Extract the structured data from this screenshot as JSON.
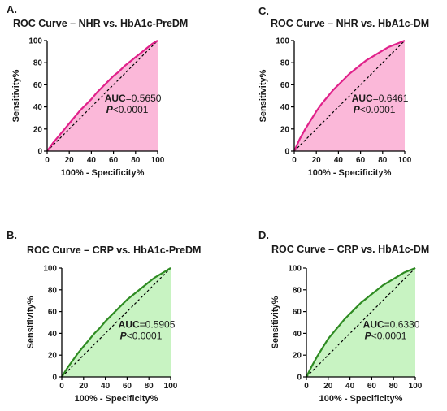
{
  "chart_data": [
    {
      "type": "line",
      "panel_label": "A.",
      "title": "ROC Curve – NHR vs. HbA1c-PreDM",
      "xlabel": "100% - Specificity%",
      "ylabel": "Sensitivity%",
      "xlim": [
        0,
        100
      ],
      "ylim": [
        0,
        100
      ],
      "ticks": [
        "0",
        "20",
        "40",
        "60",
        "80",
        "100"
      ],
      "grid": false,
      "line_color": "#e0218a",
      "fill_color": "#fbb8d9",
      "auc_label": "AUC",
      "auc_value": "=0.5650",
      "p_label": "P",
      "p_value": "<0.0001",
      "x": [
        0,
        5,
        10,
        15,
        20,
        25,
        30,
        35,
        40,
        45,
        50,
        55,
        60,
        65,
        70,
        75,
        80,
        85,
        90,
        95,
        100
      ],
      "y": [
        0,
        7,
        13,
        19,
        25,
        31,
        37,
        42,
        47,
        53,
        58,
        63,
        68,
        72,
        77,
        81,
        85,
        89,
        93,
        97,
        100
      ]
    },
    {
      "type": "line",
      "panel_label": "C.",
      "title": "ROC Curve – NHR vs. HbA1c-DM",
      "xlabel": "100% - Specificity%",
      "ylabel": "Sensitivity%",
      "xlim": [
        0,
        100
      ],
      "ylim": [
        0,
        100
      ],
      "ticks": [
        "0",
        "20",
        "40",
        "60",
        "80",
        "100"
      ],
      "grid": false,
      "line_color": "#e0218a",
      "fill_color": "#fbb8d9",
      "auc_label": "AUC",
      "auc_value": "=0.6461",
      "p_label": "P",
      "p_value": "<0.0001",
      "x": [
        0,
        5,
        10,
        15,
        20,
        25,
        30,
        35,
        40,
        45,
        50,
        55,
        60,
        65,
        70,
        75,
        80,
        85,
        90,
        95,
        100
      ],
      "y": [
        0,
        11,
        20,
        28,
        36,
        43,
        49,
        55,
        60,
        65,
        70,
        74,
        78,
        82,
        85,
        88,
        91,
        94,
        96,
        98,
        100
      ]
    },
    {
      "type": "line",
      "panel_label": "B.",
      "title": "ROC Curve – CRP vs. HbA1c-PreDM",
      "xlabel": "100% - Specificity%",
      "ylabel": "Sensitivity%",
      "xlim": [
        0,
        100
      ],
      "ylim": [
        0,
        100
      ],
      "ticks": [
        "0",
        "20",
        "40",
        "60",
        "80",
        "100"
      ],
      "grid": false,
      "line_color": "#2e8b22",
      "fill_color": "#c8f3c2",
      "auc_label": "AUC",
      "auc_value": "=0.5905",
      "p_label": "P",
      "p_value": "<0.0001",
      "x": [
        0,
        5,
        10,
        15,
        20,
        25,
        30,
        35,
        40,
        45,
        50,
        55,
        60,
        65,
        70,
        75,
        80,
        85,
        90,
        95,
        100
      ],
      "y": [
        0,
        8,
        15,
        22,
        28,
        34,
        40,
        45,
        51,
        56,
        61,
        66,
        71,
        75,
        79,
        83,
        87,
        91,
        94,
        97,
        100
      ]
    },
    {
      "type": "line",
      "panel_label": "D.",
      "title": "ROC Curve – CRP vs. HbA1c-DM",
      "xlabel": "100% - Specificity%",
      "ylabel": "Sensitivity%",
      "xlim": [
        0,
        100
      ],
      "ylim": [
        0,
        100
      ],
      "ticks": [
        "0",
        "20",
        "40",
        "60",
        "80",
        "100"
      ],
      "grid": false,
      "line_color": "#2e8b22",
      "fill_color": "#c8f3c2",
      "auc_label": "AUC",
      "auc_value": "=0.6330",
      "p_label": "P",
      "p_value": "<0.0001",
      "x": [
        0,
        5,
        10,
        15,
        20,
        25,
        30,
        35,
        40,
        45,
        50,
        55,
        60,
        65,
        70,
        75,
        80,
        85,
        90,
        95,
        100
      ],
      "y": [
        0,
        10,
        19,
        27,
        35,
        41,
        47,
        53,
        58,
        63,
        68,
        72,
        76,
        80,
        84,
        87,
        90,
        93,
        96,
        98,
        100
      ]
    }
  ]
}
